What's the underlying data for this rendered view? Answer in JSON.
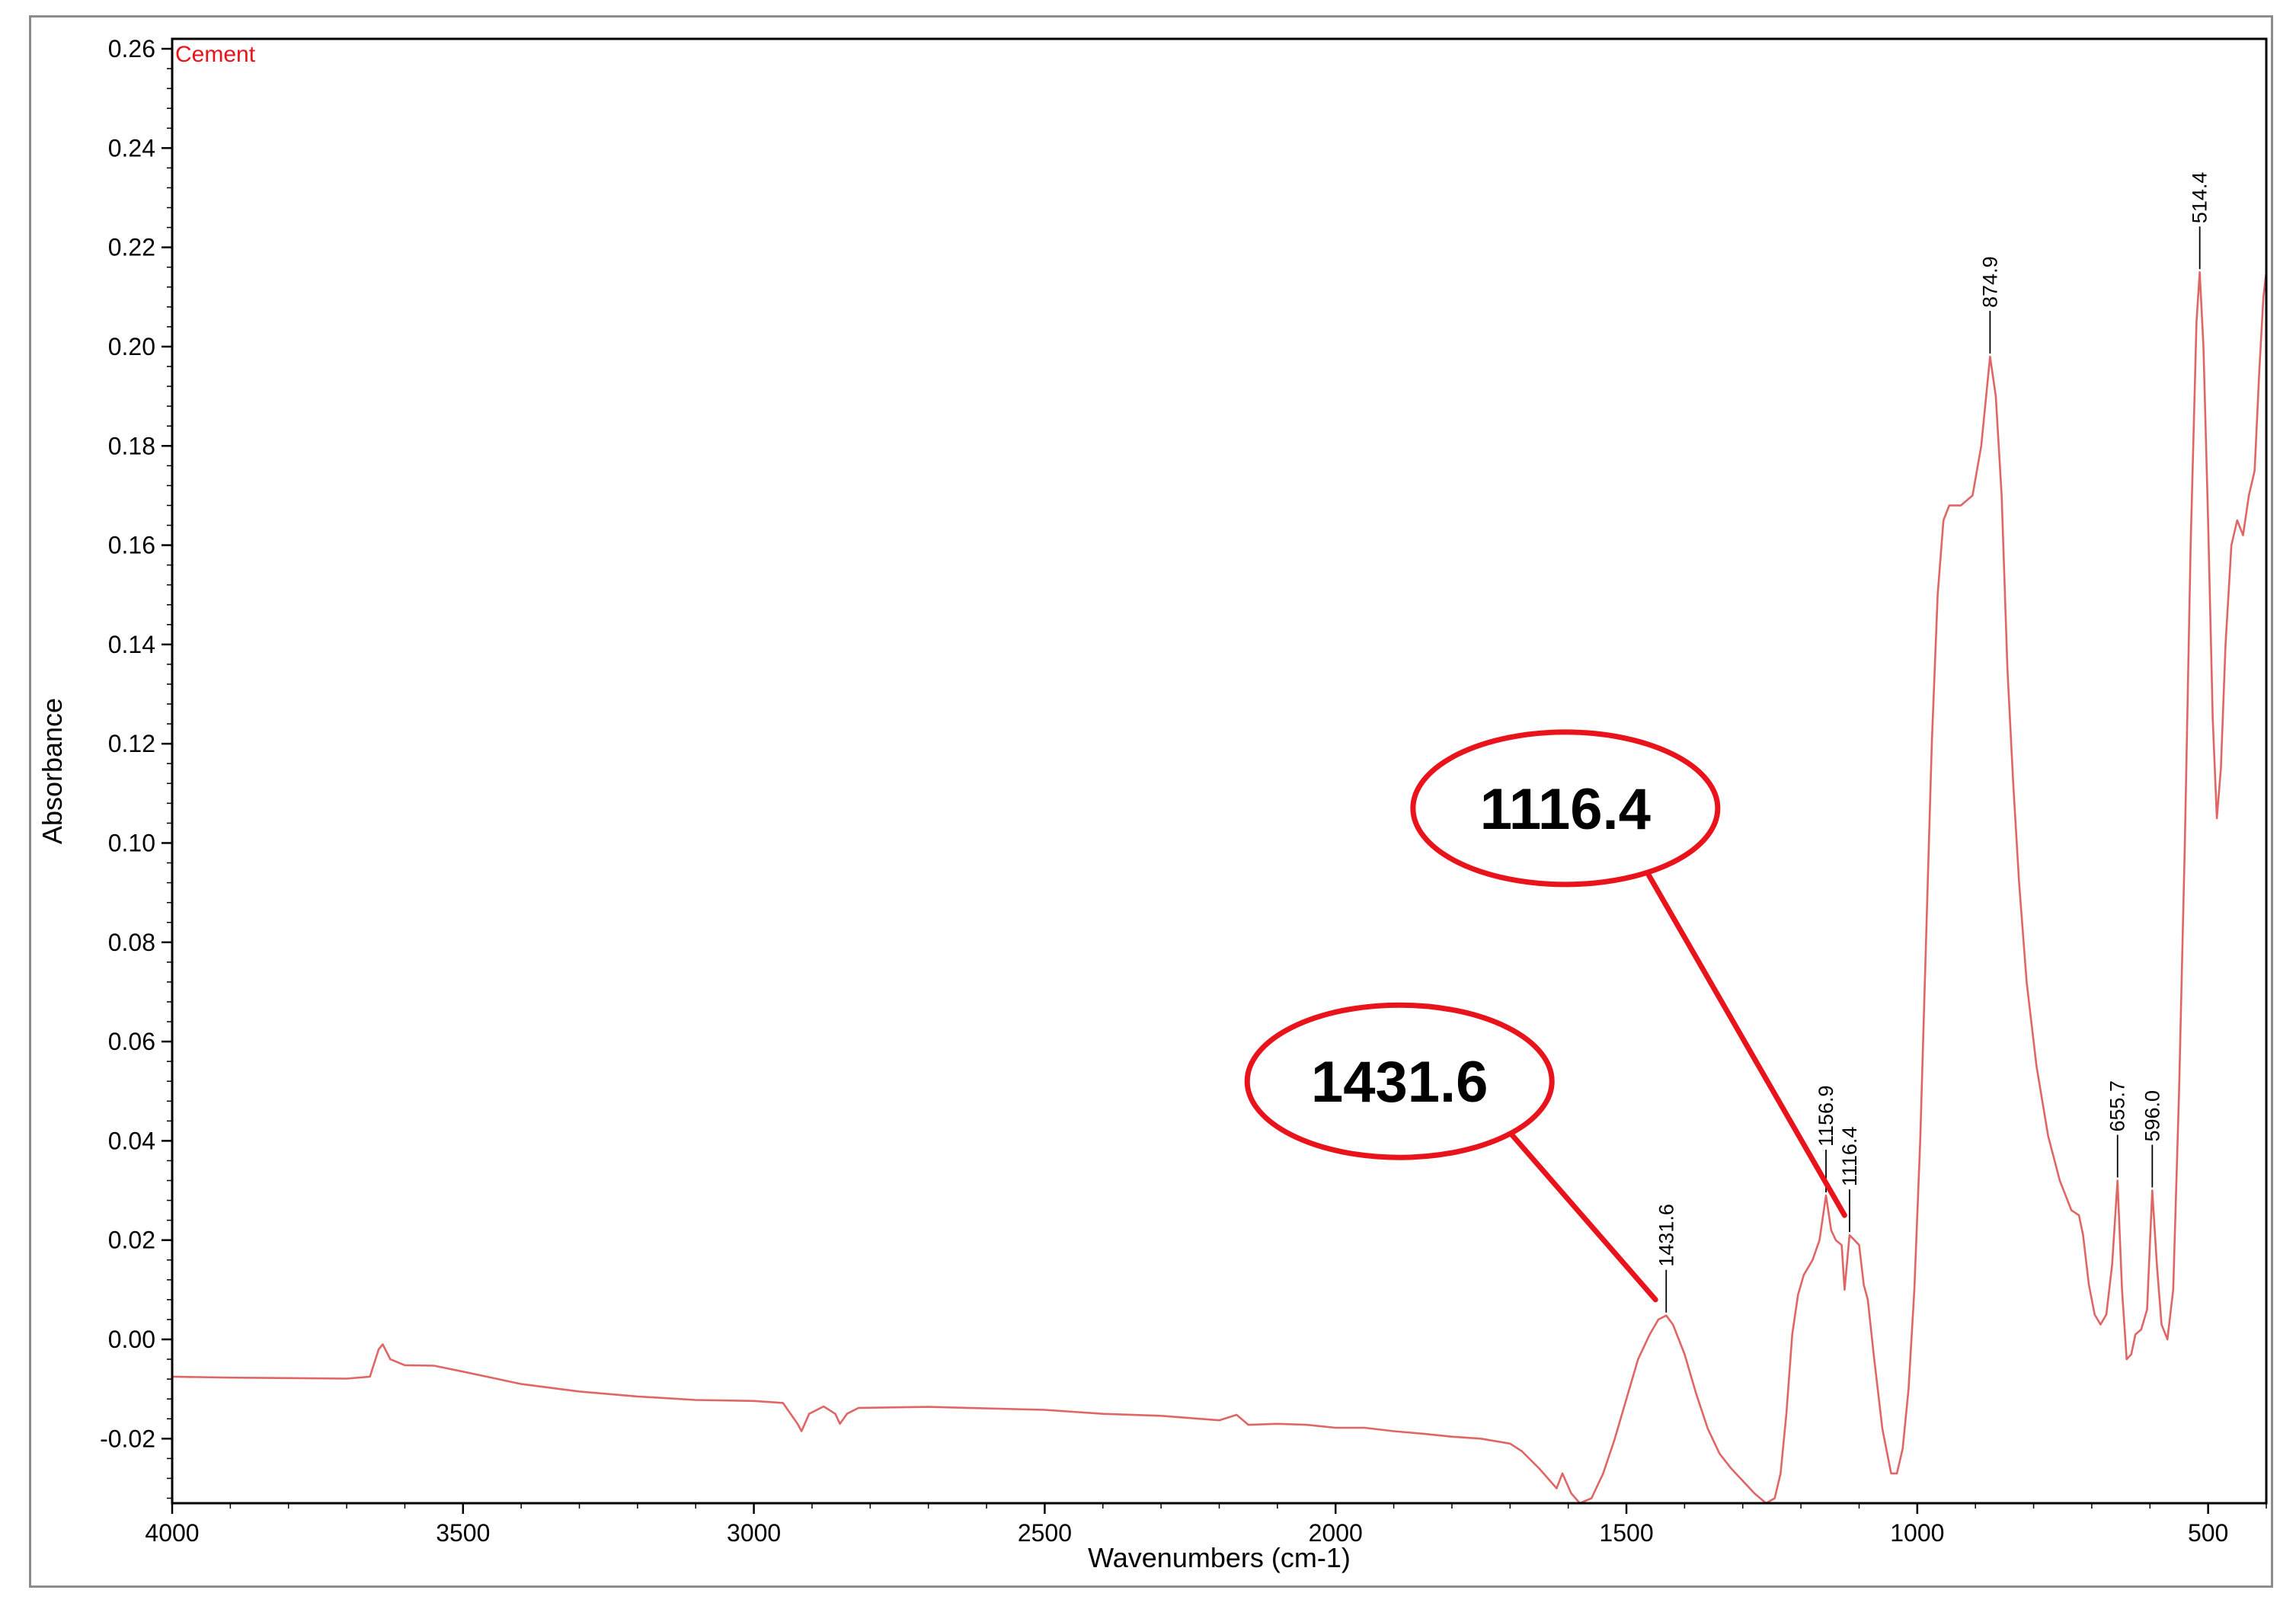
{
  "chart_data": {
    "type": "line",
    "title": "",
    "xlabel": "Wavenumbers (cm-1)",
    "ylabel": "Absorbance",
    "xlim": [
      4000,
      400
    ],
    "x_reversed": true,
    "ylim": [
      -0.033,
      0.262
    ],
    "x_ticks": [
      "4000",
      "3500",
      "3000",
      "2500",
      "2000",
      "1500",
      "1000",
      "500"
    ],
    "y_ticks": [
      "0.26",
      "0.24",
      "0.22",
      "0.20",
      "0.18",
      "0.16",
      "0.14",
      "0.12",
      "0.10",
      "0.08",
      "0.06",
      "0.04",
      "0.02",
      "0.00",
      "-0.02"
    ],
    "grid": false,
    "legend": "none",
    "series": [
      {
        "name": "Cement",
        "color": "#e06666",
        "points": [
          [
            4000,
            -0.0075
          ],
          [
            3900,
            -0.0077
          ],
          [
            3800,
            -0.0078
          ],
          [
            3700,
            -0.0079
          ],
          [
            3660,
            -0.0075
          ],
          [
            3645,
            -0.002
          ],
          [
            3638,
            -0.001
          ],
          [
            3625,
            -0.004
          ],
          [
            3600,
            -0.0052
          ],
          [
            3550,
            -0.0053
          ],
          [
            3500,
            -0.0065
          ],
          [
            3400,
            -0.009
          ],
          [
            3300,
            -0.0105
          ],
          [
            3200,
            -0.0115
          ],
          [
            3100,
            -0.0122
          ],
          [
            3000,
            -0.0124
          ],
          [
            2950,
            -0.0128
          ],
          [
            2925,
            -0.017
          ],
          [
            2918,
            -0.0185
          ],
          [
            2905,
            -0.015
          ],
          [
            2880,
            -0.0135
          ],
          [
            2860,
            -0.015
          ],
          [
            2852,
            -0.017
          ],
          [
            2840,
            -0.015
          ],
          [
            2820,
            -0.0138
          ],
          [
            2700,
            -0.0136
          ],
          [
            2600,
            -0.0139
          ],
          [
            2500,
            -0.0142
          ],
          [
            2400,
            -0.015
          ],
          [
            2300,
            -0.0154
          ],
          [
            2200,
            -0.0163
          ],
          [
            2170,
            -0.0152
          ],
          [
            2150,
            -0.0172
          ],
          [
            2100,
            -0.017
          ],
          [
            2050,
            -0.0172
          ],
          [
            2000,
            -0.0178
          ],
          [
            1950,
            -0.0178
          ],
          [
            1900,
            -0.0185
          ],
          [
            1850,
            -0.019
          ],
          [
            1800,
            -0.0196
          ],
          [
            1750,
            -0.02
          ],
          [
            1700,
            -0.021
          ],
          [
            1680,
            -0.0225
          ],
          [
            1650,
            -0.026
          ],
          [
            1620,
            -0.03
          ],
          [
            1610,
            -0.027
          ],
          [
            1595,
            -0.031
          ],
          [
            1580,
            -0.033
          ],
          [
            1560,
            -0.032
          ],
          [
            1540,
            -0.027
          ],
          [
            1520,
            -0.02
          ],
          [
            1500,
            -0.012
          ],
          [
            1480,
            -0.004
          ],
          [
            1460,
            0.001
          ],
          [
            1445,
            0.004
          ],
          [
            1431.6,
            0.0048
          ],
          [
            1420,
            0.003
          ],
          [
            1400,
            -0.003
          ],
          [
            1380,
            -0.011
          ],
          [
            1360,
            -0.018
          ],
          [
            1340,
            -0.023
          ],
          [
            1320,
            -0.026
          ],
          [
            1300,
            -0.0285
          ],
          [
            1280,
            -0.031
          ],
          [
            1260,
            -0.033
          ],
          [
            1245,
            -0.032
          ],
          [
            1235,
            -0.027
          ],
          [
            1225,
            -0.015
          ],
          [
            1215,
            0.001
          ],
          [
            1205,
            0.009
          ],
          [
            1195,
            0.013
          ],
          [
            1180,
            0.016
          ],
          [
            1168,
            0.02
          ],
          [
            1156.9,
            0.029
          ],
          [
            1148,
            0.022
          ],
          [
            1140,
            0.02
          ],
          [
            1130,
            0.019
          ],
          [
            1125,
            0.01
          ],
          [
            1116.4,
            0.021
          ],
          [
            1108,
            0.02
          ],
          [
            1100,
            0.019
          ],
          [
            1092,
            0.011
          ],
          [
            1085,
            0.008
          ],
          [
            1075,
            -0.003
          ],
          [
            1060,
            -0.018
          ],
          [
            1045,
            -0.027
          ],
          [
            1035,
            -0.027
          ],
          [
            1025,
            -0.022
          ],
          [
            1015,
            -0.01
          ],
          [
            1005,
            0.01
          ],
          [
            995,
            0.04
          ],
          [
            985,
            0.08
          ],
          [
            975,
            0.12
          ],
          [
            965,
            0.15
          ],
          [
            955,
            0.165
          ],
          [
            945,
            0.168
          ],
          [
            925,
            0.168
          ],
          [
            905,
            0.17
          ],
          [
            890,
            0.18
          ],
          [
            874.9,
            0.198
          ],
          [
            865,
            0.19
          ],
          [
            855,
            0.17
          ],
          [
            845,
            0.135
          ],
          [
            835,
            0.112
          ],
          [
            825,
            0.092
          ],
          [
            812,
            0.072
          ],
          [
            795,
            0.055
          ],
          [
            775,
            0.041
          ],
          [
            755,
            0.032
          ],
          [
            735,
            0.026
          ],
          [
            722,
            0.025
          ],
          [
            715,
            0.021
          ],
          [
            705,
            0.011
          ],
          [
            695,
            0.005
          ],
          [
            685,
            0.003
          ],
          [
            675,
            0.005
          ],
          [
            665,
            0.015
          ],
          [
            655.7,
            0.032
          ],
          [
            648,
            0.01
          ],
          [
            640,
            -0.004
          ],
          [
            632,
            -0.003
          ],
          [
            625,
            0.001
          ],
          [
            615,
            0.002
          ],
          [
            605,
            0.006
          ],
          [
            596.0,
            0.03
          ],
          [
            588,
            0.015
          ],
          [
            580,
            0.003
          ],
          [
            570,
            0.0
          ],
          [
            560,
            0.01
          ],
          [
            550,
            0.05
          ],
          [
            540,
            0.1
          ],
          [
            530,
            0.16
          ],
          [
            520,
            0.205
          ],
          [
            514.4,
            0.215
          ],
          [
            508,
            0.2
          ],
          [
            500,
            0.165
          ],
          [
            492,
            0.125
          ],
          [
            485,
            0.105
          ],
          [
            478,
            0.115
          ],
          [
            470,
            0.14
          ],
          [
            460,
            0.16
          ],
          [
            450,
            0.165
          ],
          [
            440,
            0.162
          ],
          [
            430,
            0.17
          ],
          [
            420,
            0.175
          ],
          [
            412,
            0.195
          ],
          [
            405,
            0.21
          ],
          [
            400,
            0.215
          ]
        ]
      }
    ],
    "peak_labels": [
      {
        "x": 1431.6,
        "y": 0.0048,
        "text": "1431.6"
      },
      {
        "x": 1156.9,
        "y": 0.029,
        "text": "1156.9"
      },
      {
        "x": 1116.4,
        "y": 0.021,
        "text": "1116.4"
      },
      {
        "x": 874.9,
        "y": 0.198,
        "text": "874.9"
      },
      {
        "x": 655.7,
        "y": 0.032,
        "text": "655.7"
      },
      {
        "x": 596.0,
        "y": 0.03,
        "text": "596.0"
      },
      {
        "x": 514.4,
        "y": 0.215,
        "text": "514.4"
      }
    ],
    "callouts": [
      {
        "text": "1431.6",
        "target_x": 1450,
        "target_y": 0.008,
        "anchor_x": 1890,
        "anchor_y": 0.052
      },
      {
        "text": "1116.4",
        "target_x": 1125,
        "target_y": 0.025,
        "anchor_x": 1605,
        "anchor_y": 0.107
      }
    ],
    "colors": {
      "spectrum": "#e06666",
      "callout": "#e8131b",
      "series_label": "#e8131b"
    }
  }
}
